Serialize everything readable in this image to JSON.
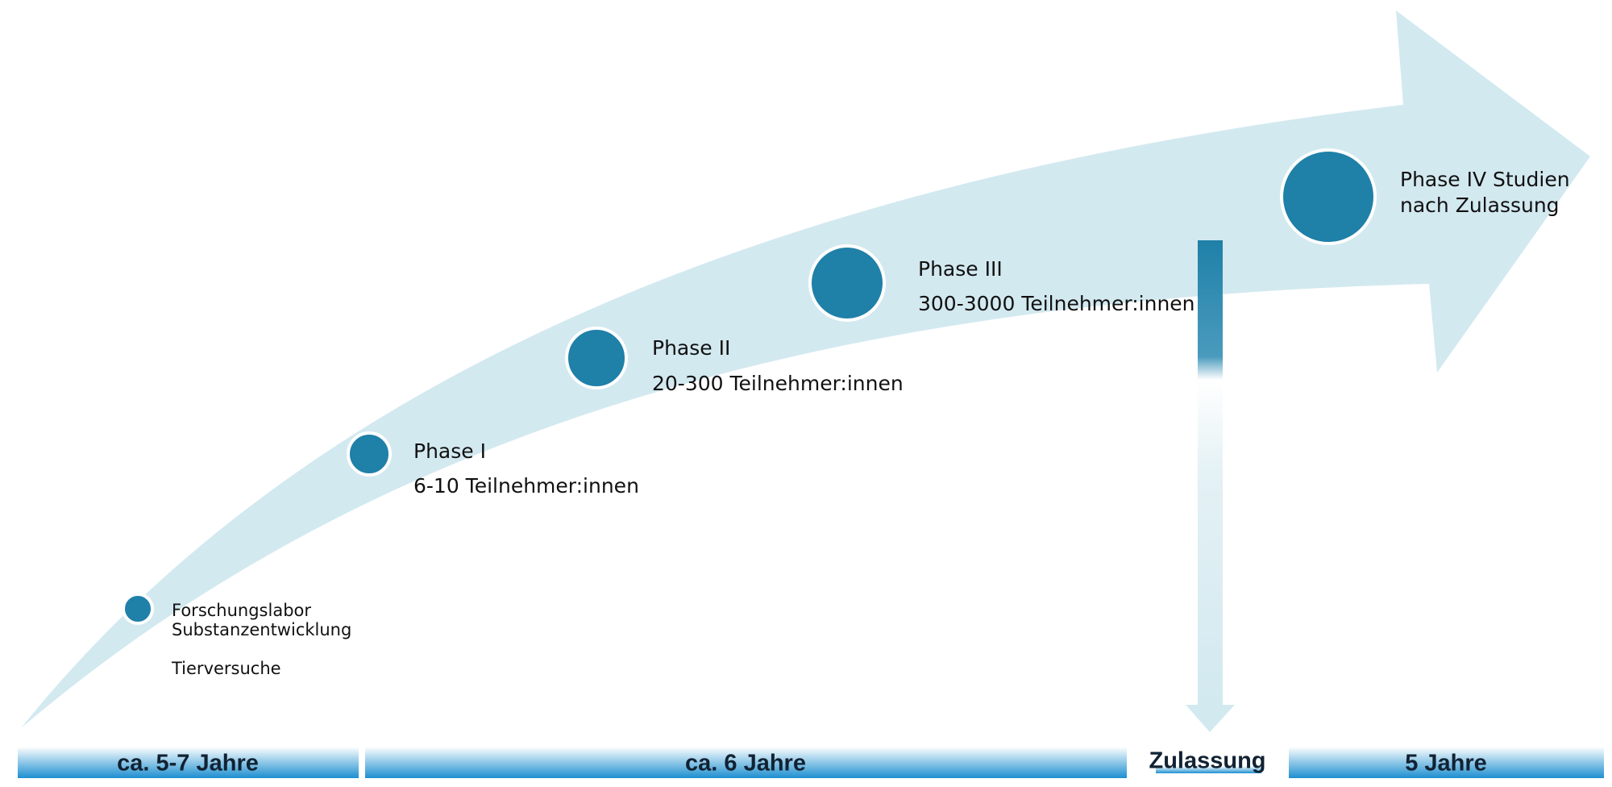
{
  "stages": [
    {
      "lines": [
        "Forschungslabor",
        "Substanzentwicklung",
        "Tierversuche"
      ]
    },
    {
      "lines": [
        "Phase I",
        "6-10 Teilnehmer:innen"
      ]
    },
    {
      "lines": [
        "Phase II",
        "20-300 Teilnehmer:innen"
      ]
    },
    {
      "lines": [
        "Phase III",
        "300-3000 Teilnehmer:innen"
      ]
    },
    {
      "lines": [
        "Phase IV Studien",
        "nach Zulassung"
      ]
    }
  ],
  "timeline": [
    "ca. 5-7 Jahre",
    "ca. 6 Jahre",
    "Zulassung",
    "5 Jahre"
  ]
}
